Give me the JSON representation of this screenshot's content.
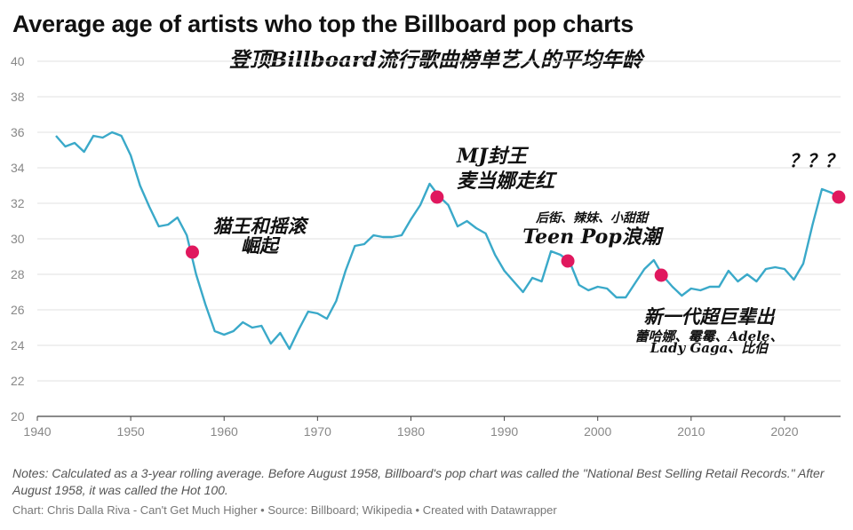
{
  "title": "Average age of artists who top the Billboard pop charts",
  "subtitle": "登顶Billboard流行歌曲榜单艺人的平均年龄",
  "notes": "Notes: Calculated as a 3-year rolling average. Before August 1958, Billboard's pop chart was called the \"National Best Selling Retail Records.\" After August 1958, it was called the Hot 100.",
  "credit": "Chart: Chris Dalla Riva - Can't Get Much Higher • Source: Billboard; Wikipedia • Created with Datawrapper",
  "chart_data": {
    "type": "line",
    "xlim": [
      1940,
      2026
    ],
    "ylim": [
      20,
      40
    ],
    "x_ticks": [
      1940,
      1950,
      1960,
      1970,
      1980,
      1990,
      2000,
      2010,
      2020
    ],
    "y_ticks": [
      20,
      22,
      24,
      26,
      28,
      30,
      32,
      34,
      36,
      38,
      40
    ],
    "grid": true,
    "line_color": "#3aa9c9",
    "marker_color": "#e0185e",
    "series": [
      {
        "x": [
          1942,
          1943,
          1944,
          1945,
          1946,
          1947,
          1948,
          1949,
          1950,
          1951,
          1952,
          1953,
          1954,
          1955,
          1956,
          1957,
          1958,
          1959,
          1960,
          1961,
          1962,
          1963,
          1964,
          1965,
          1966,
          1967,
          1968,
          1969,
          1970,
          1971,
          1972,
          1973,
          1974,
          1975,
          1976,
          1977,
          1978,
          1979,
          1980,
          1981,
          1982,
          1983,
          1984,
          1985,
          1986,
          1987,
          1988,
          1989,
          1990,
          1991,
          1992,
          1993,
          1994,
          1995,
          1996,
          1997,
          1998,
          1999,
          2000,
          2001,
          2002,
          2003,
          2004,
          2005,
          2006,
          2007,
          2008,
          2009,
          2010,
          2011,
          2012,
          2013,
          2014,
          2015,
          2016,
          2017,
          2018,
          2019,
          2020,
          2021,
          2022,
          2023,
          2024,
          2025,
          2026
        ],
        "y": [
          35.8,
          35.2,
          35.4,
          34.9,
          35.8,
          35.7,
          36.0,
          35.8,
          34.7,
          33.0,
          31.8,
          30.7,
          30.8,
          31.2,
          30.2,
          28.0,
          26.3,
          24.8,
          24.6,
          24.8,
          25.3,
          25.0,
          25.1,
          24.1,
          24.7,
          23.8,
          24.9,
          25.9,
          25.8,
          25.5,
          26.5,
          28.2,
          29.6,
          29.7,
          30.2,
          30.1,
          30.1,
          30.2,
          31.1,
          31.9,
          33.1,
          32.4,
          31.9,
          30.7,
          31.0,
          30.6,
          30.3,
          29.1,
          28.2,
          27.6,
          27.0,
          27.8,
          27.6,
          29.3,
          29.1,
          28.7,
          27.4,
          27.1,
          27.3,
          27.2,
          26.7,
          26.7,
          27.5,
          28.3,
          28.8,
          27.9,
          27.3,
          26.8,
          27.2,
          27.1,
          27.3,
          27.3,
          28.2,
          27.6,
          28.0,
          27.6,
          28.3,
          28.4,
          28.3,
          27.7,
          28.6,
          30.8,
          32.8,
          32.6,
          32.3
        ]
      }
    ],
    "highlights": [
      {
        "x": 1956.6,
        "y": 29.25
      },
      {
        "x": 1982.8,
        "y": 32.35
      },
      {
        "x": 1996.8,
        "y": 28.75
      },
      {
        "x": 2006.8,
        "y": 27.95
      },
      {
        "x": 2025.8,
        "y": 32.35
      }
    ],
    "annotations": [
      {
        "lines": [
          "猫王和摇滚",
          "崛起"
        ]
      },
      {
        "lines": [
          "MJ封王",
          "麦当娜走红"
        ]
      },
      {
        "lines": [
          "后街、辣妹、小甜甜",
          "Teen Pop浪潮"
        ]
      },
      {
        "lines": [
          "新一代超巨辈出",
          "蕾哈娜、霉霉、Adele、",
          "Lady Gaga、比伯"
        ]
      },
      {
        "lines": [
          "？？？"
        ]
      }
    ]
  }
}
